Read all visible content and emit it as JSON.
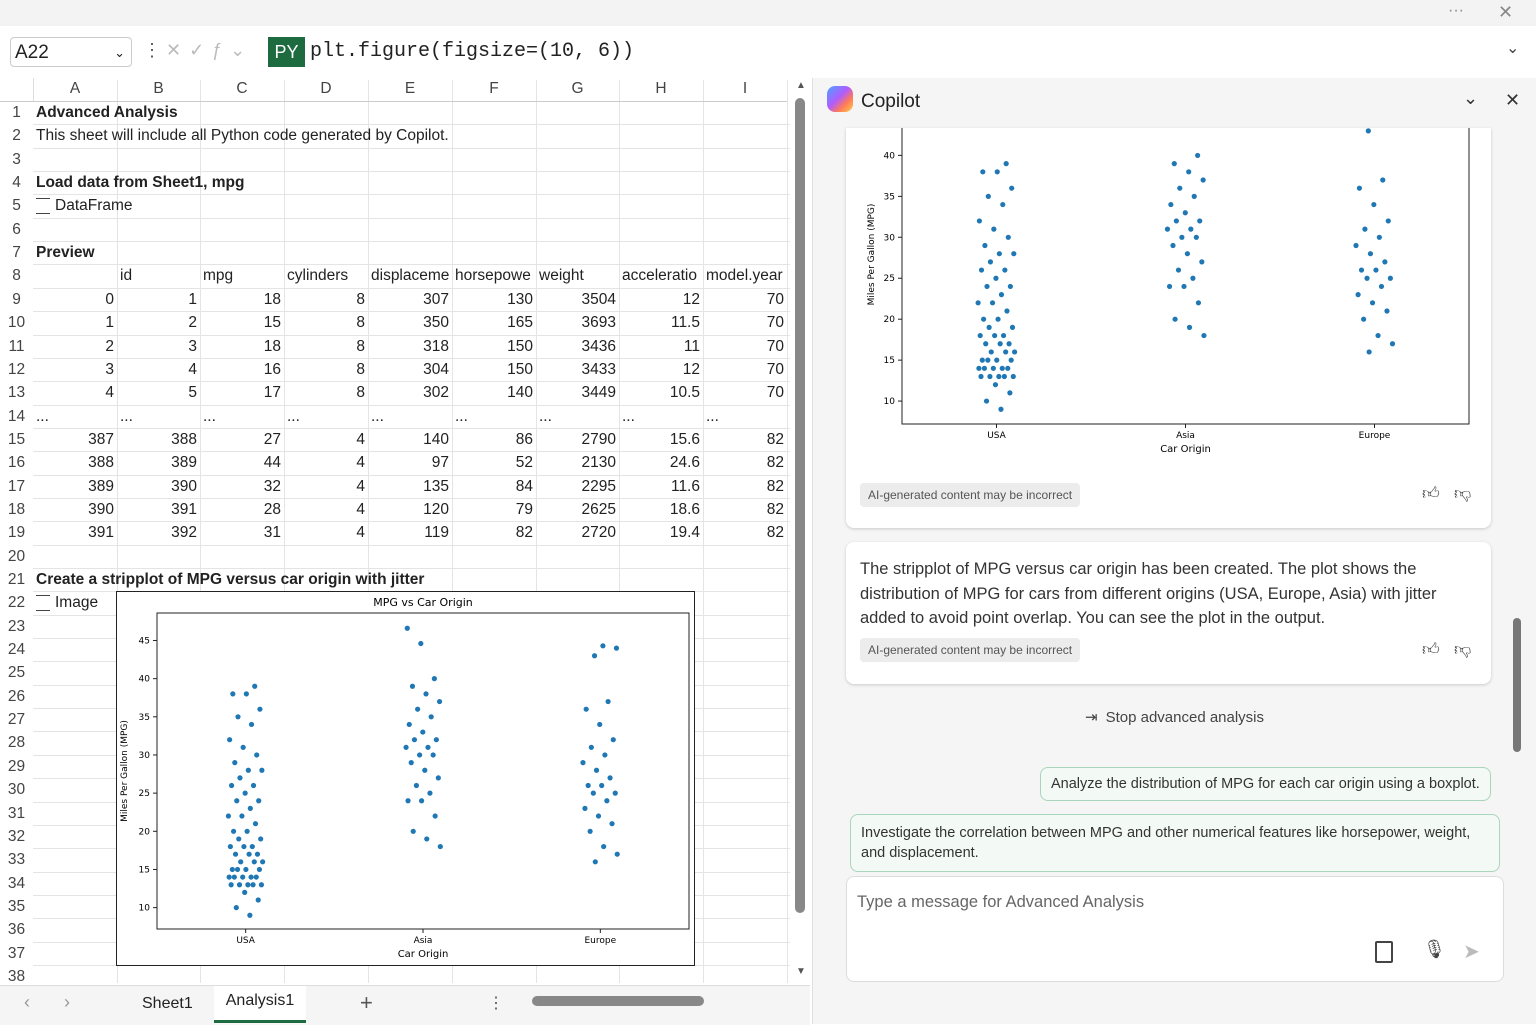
{
  "formula_bar": {
    "name_box": "A22",
    "badge": "PY",
    "formula": "plt.figure(figsize=(10, 6))"
  },
  "sheet": {
    "columns": [
      "A",
      "B",
      "C",
      "D",
      "E",
      "F",
      "G",
      "H",
      "I"
    ],
    "row_headers": [
      1,
      2,
      3,
      4,
      5,
      6,
      7,
      8,
      9,
      10,
      11,
      12,
      13,
      14,
      15,
      16,
      17,
      18,
      19,
      20,
      21,
      22,
      23,
      24,
      25,
      26,
      27,
      28,
      29,
      30,
      31,
      32,
      33,
      34,
      35,
      36,
      37,
      38
    ],
    "rows": [
      [
        "Advanced Analysis"
      ],
      [
        "This sheet will include all Python code generated by Copilot."
      ],
      [],
      [
        "Load data from Sheet1, mpg"
      ],
      [
        "DataFrame"
      ],
      [],
      [
        "Preview"
      ],
      [
        null,
        "id",
        "mpg",
        "cylinders",
        "displaceme",
        "horsepowe",
        "weight",
        "acceleratio",
        "model.year"
      ],
      [
        0,
        1,
        18,
        8,
        307,
        130,
        3504,
        12,
        70
      ],
      [
        1,
        2,
        15,
        8,
        350,
        165,
        3693,
        11.5,
        70
      ],
      [
        2,
        3,
        18,
        8,
        318,
        150,
        3436,
        11,
        70
      ],
      [
        3,
        4,
        16,
        8,
        304,
        150,
        3433,
        12,
        70
      ],
      [
        4,
        5,
        17,
        8,
        302,
        140,
        3449,
        10.5,
        70
      ],
      [
        "...",
        "...",
        "...",
        "...",
        "...",
        "...",
        "...",
        "...",
        "..."
      ],
      [
        387,
        388,
        27,
        4,
        140,
        86,
        2790,
        15.6,
        82
      ],
      [
        388,
        389,
        44,
        4,
        97,
        52,
        2130,
        24.6,
        82
      ],
      [
        389,
        390,
        32,
        4,
        135,
        84,
        2295,
        11.6,
        82
      ],
      [
        390,
        391,
        28,
        4,
        120,
        79,
        2625,
        18.6,
        82
      ],
      [
        391,
        392,
        31,
        4,
        119,
        82,
        2720,
        19.4,
        82
      ],
      [],
      [
        "Create a stripplot of MPG versus car origin with jitter"
      ],
      [
        "Image"
      ],
      [],
      [],
      [],
      [],
      [],
      [],
      [],
      [],
      [],
      [],
      [],
      [],
      [],
      [],
      [],
      []
    ]
  },
  "tabs": [
    "Sheet1",
    "Analysis1"
  ],
  "figure": {
    "title": "MPG vs Car Origin",
    "xlabel": "Car Origin",
    "ylabel": "Miles Per Gallon (MPG)",
    "categories": [
      "USA",
      "Asia",
      "Europe"
    ],
    "color": "#1f77b4",
    "ylim": [
      7.2,
      48.6
    ],
    "yticks": [
      10,
      15,
      20,
      25,
      30,
      35,
      40,
      45
    ],
    "values": [
      [
        9,
        10,
        11,
        12,
        13,
        13,
        13,
        13,
        13,
        14,
        14,
        14,
        14,
        14,
        15,
        15,
        15,
        15,
        16,
        16,
        16,
        17,
        17,
        17,
        18,
        18,
        18,
        19,
        19,
        20,
        20,
        21,
        22,
        22,
        23,
        24,
        24,
        25,
        26,
        26,
        27,
        28,
        28,
        29,
        30,
        31,
        32,
        34,
        35,
        36,
        38,
        38,
        39
      ],
      [
        18,
        19,
        20,
        22,
        24,
        24,
        25,
        26,
        27,
        28,
        29,
        30,
        30,
        31,
        31,
        32,
        32,
        33,
        34,
        35,
        36,
        37,
        38,
        39,
        40,
        44.6,
        46.6
      ],
      [
        16,
        17,
        18,
        20,
        21,
        22,
        23,
        24,
        25,
        25,
        26,
        26,
        27,
        28,
        29,
        30,
        31,
        32,
        34,
        36,
        37,
        43,
        44,
        44.3
      ]
    ]
  },
  "copilot": {
    "title": "Copilot",
    "disclaimer": "AI-generated content may be incorrect",
    "message": "The stripplot of MPG versus car origin has been created. The plot shows the distribution of MPG for cars from different origins (USA, Europe, Asia) with jitter added to avoid point overlap. You can see the plot in the output.",
    "stop": "Stop advanced analysis",
    "suggestions": [
      "Analyze the distribution of MPG for each car origin using a boxplot.",
      "Investigate the correlation between MPG and other numerical features like horsepower, weight, and displacement."
    ],
    "input_placeholder": "Type a message for Advanced Analysis"
  }
}
